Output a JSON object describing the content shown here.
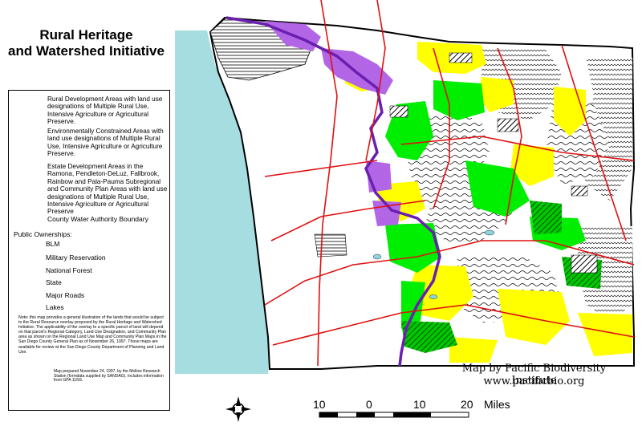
{
  "title": {
    "line1": "Rural Heritage",
    "line2": "and Watershed Initiative"
  },
  "legend": {
    "rural_dev": "Rural Development Areas with land use designations of Multiple Rural Use, Intensive Agriculture or Agricultural Preserve.",
    "env_constrained": "Environmentally Constrained Areas with land use designations of Multiple Rural Use, Intensive Agriculture or Agriculture Preserve.",
    "estate_dev": "Estate Development Areas in the Ramona, Pendleton-DeLuz, Fallbrook, Rainbow and Pala-Pauma Subregional and Community Plan Areas with land use designations of Multiple Rural Use, Intensive Agriculture or Agricultural Preserve",
    "water_authority": "County Water Authority Boundary",
    "public_ownerships": "Public Ownerships:",
    "blm": "BLM",
    "military": "Military Reservation",
    "national_forest": "National Forest",
    "state": "State",
    "major_roads": "Major Roads",
    "lakes": "Lakes",
    "colors": {
      "yellow": "#ffff00",
      "green": "#00ee00",
      "purple": "#b266e6",
      "boundary": "#6a1fb0",
      "roads": "#e01010",
      "lakes": "#8fd3e0",
      "ocean": "#a6dde0"
    }
  },
  "note": "Note: this map provides a general illustration of the lands that would be subject to the Rural Resource overlay proposed by the Rural Heritage and Watershed Initiative. The applicability of the overlay to a specific parcel of land will depend on that parcel's Regional Category, Land Use Designation, and Community Plan area as shown on the Regional Land Use Map and Community Plan Maps in the San Diego County General Plan as of November 26, 1997. Those maps are available for review at the San Diego County Department of Planning and Land Use.",
  "map_prepared": "Map prepared November 24, 1997, by the Mellow Research Station (formdata supplied by SANDAG). Includes information from GPA 11/93.",
  "credit": {
    "line1": "Map by Pacific Biodiversity Institute",
    "line2": "www.pacificbio.org"
  },
  "scale": {
    "ticks": [
      "10",
      "0",
      "10",
      "20"
    ],
    "unit": "Miles"
  }
}
